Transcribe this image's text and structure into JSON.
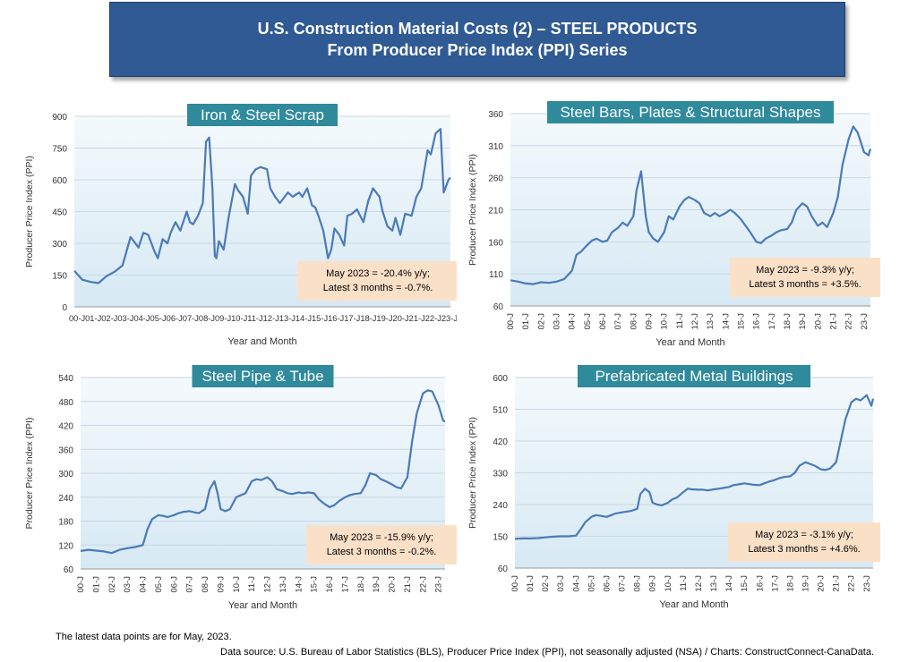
{
  "header": {
    "line1": "U.S. Construction Material Costs (2) – STEEL PRODUCTS",
    "line2": "From Producer Price Index (PPI) Series"
  },
  "footer": {
    "note": "The latest data points are for May, 2023.",
    "source": "Data source: U.S. Bureau of Labor Statistics (BLS), Producer Price Index (PPI), not seasonally adjusted (NSA) / Charts: ConstructConnect-CanaData."
  },
  "colors": {
    "line": "#4a7ab8",
    "title_box": "#2f8a9c",
    "annotation_box": "#fbe0c8",
    "plot_bg_top": "#f4f9fc",
    "plot_bg_bottom": "#d7e9f4",
    "banner": "#2f5a94"
  },
  "chart_data": [
    {
      "type": "line",
      "title": "Iron & Steel Scrap",
      "xlabel": "Year and Month",
      "ylabel": "Producer Price Index (PPI)",
      "ylim": [
        0,
        900
      ],
      "yticks": [
        0,
        150,
        300,
        450,
        600,
        750,
        900
      ],
      "tick_style": "horizontal",
      "categories": [
        "00-J",
        "01-J",
        "02-J",
        "03-J",
        "04-J",
        "05-J",
        "06-J",
        "07-J",
        "08-J",
        "09-J",
        "10-J",
        "11-J",
        "12-J",
        "13-J",
        "14-J",
        "15-J",
        "16-J",
        "17-J",
        "18-J",
        "19-J",
        "20-J",
        "21-J",
        "22-J",
        "23-J"
      ],
      "annotation": [
        "May 2023 = -20.4% y/y;",
        "Latest 3 months = -0.7%."
      ],
      "x": [
        0,
        0.5,
        1,
        1.5,
        2,
        2.5,
        3,
        3.5,
        4,
        4.3,
        4.6,
        5,
        5.2,
        5.5,
        5.8,
        6,
        6.3,
        6.6,
        7,
        7.2,
        7.4,
        7.7,
        8,
        8.2,
        8.4,
        8.6,
        8.75,
        8.85,
        9,
        9.3,
        9.6,
        10,
        10.2,
        10.5,
        10.8,
        11,
        11.3,
        11.6,
        12,
        12.2,
        12.5,
        12.8,
        13,
        13.3,
        13.6,
        14,
        14.2,
        14.5,
        14.8,
        15,
        15.2,
        15.5,
        15.8,
        16,
        16.2,
        16.5,
        16.8,
        17,
        17.3,
        17.6,
        18,
        18.3,
        18.6,
        19,
        19.2,
        19.5,
        19.8,
        20,
        20.3,
        20.6,
        21,
        21.3,
        21.6,
        22,
        22.2,
        22.5,
        22.8,
        23,
        23.3,
        23.42
      ],
      "values": [
        170,
        128,
        118,
        112,
        145,
        165,
        195,
        330,
        280,
        350,
        340,
        260,
        230,
        320,
        300,
        350,
        400,
        360,
        450,
        400,
        390,
        430,
        490,
        780,
        800,
        560,
        240,
        230,
        310,
        270,
        420,
        580,
        550,
        520,
        440,
        620,
        650,
        660,
        650,
        560,
        520,
        490,
        510,
        540,
        520,
        540,
        520,
        560,
        480,
        470,
        430,
        360,
        230,
        270,
        370,
        340,
        290,
        430,
        440,
        460,
        400,
        500,
        560,
        520,
        450,
        380,
        360,
        420,
        340,
        440,
        430,
        520,
        560,
        740,
        720,
        820,
        840,
        540,
        600,
        610
      ]
    },
    {
      "type": "line",
      "title": "Steel Bars, Plates & Structural Shapes",
      "xlabel": "Year and Month",
      "ylabel": "Producer Price Index (PPI)",
      "ylim": [
        60,
        360
      ],
      "yticks": [
        60,
        110,
        160,
        210,
        260,
        310,
        360
      ],
      "tick_style": "rotated",
      "categories": [
        "00-J",
        "01-J",
        "02-J",
        "03-J",
        "04-J",
        "05-J",
        "06-J",
        "07-J",
        "08-J",
        "09-J",
        "10-J",
        "11-J",
        "12-J",
        "13-J",
        "14-J",
        "15-J",
        "16-J",
        "17-J",
        "18-J",
        "19-J",
        "20-J",
        "21-J",
        "22-J",
        "23-J"
      ],
      "annotation": [
        "May 2023 = -9.3% y/y;",
        "Latest 3 months = +3.5%."
      ],
      "x": [
        0,
        0.5,
        1,
        1.5,
        2,
        2.5,
        3,
        3.5,
        4,
        4.3,
        4.6,
        5,
        5.3,
        5.6,
        6,
        6.3,
        6.6,
        7,
        7.3,
        7.6,
        8,
        8.2,
        8.5,
        8.8,
        9,
        9.3,
        9.6,
        10,
        10.3,
        10.6,
        11,
        11.3,
        11.6,
        12,
        12.3,
        12.6,
        13,
        13.3,
        13.6,
        14,
        14.3,
        14.6,
        15,
        15.3,
        15.6,
        16,
        16.3,
        16.6,
        17,
        17.3,
        17.6,
        18,
        18.3,
        18.6,
        19,
        19.3,
        19.6,
        20,
        20.3,
        20.6,
        21,
        21.3,
        21.6,
        22,
        22.3,
        22.6,
        23,
        23.3,
        23.42
      ],
      "values": [
        100,
        98,
        95,
        94,
        97,
        96,
        98,
        102,
        115,
        140,
        145,
        155,
        162,
        165,
        160,
        162,
        175,
        182,
        190,
        185,
        200,
        240,
        270,
        200,
        175,
        165,
        160,
        175,
        200,
        195,
        215,
        225,
        230,
        225,
        220,
        205,
        200,
        205,
        200,
        205,
        210,
        205,
        195,
        185,
        175,
        160,
        158,
        165,
        170,
        175,
        178,
        180,
        190,
        210,
        220,
        215,
        200,
        185,
        190,
        183,
        205,
        230,
        280,
        320,
        340,
        330,
        300,
        295,
        305
      ]
    },
    {
      "type": "line",
      "title": "Steel Pipe & Tube",
      "xlabel": "Year and Month",
      "ylabel": "Producer Price Index (PPI)",
      "ylim": [
        60,
        540
      ],
      "yticks": [
        60,
        120,
        180,
        240,
        300,
        360,
        420,
        480,
        540
      ],
      "tick_style": "rotated",
      "categories": [
        "00-J",
        "01-J",
        "02-J",
        "03-J",
        "04-J",
        "05-J",
        "06-J",
        "07-J",
        "08-J",
        "09-J",
        "10-J",
        "11-J",
        "12-J",
        "13-J",
        "14-J",
        "15-J",
        "16-J",
        "17-J",
        "18-J",
        "19-J",
        "20-J",
        "21-J",
        "22-J",
        "23-J"
      ],
      "annotation": [
        "May 2023 = -15.9% y/y;",
        "Latest 3 months = -0.2%."
      ],
      "x": [
        0,
        0.5,
        1,
        1.5,
        2,
        2.5,
        3,
        3.5,
        4,
        4.3,
        4.6,
        5,
        5.3,
        5.6,
        6,
        6.3,
        6.6,
        7,
        7.3,
        7.6,
        8,
        8.3,
        8.6,
        8.8,
        9,
        9.3,
        9.6,
        10,
        10.3,
        10.6,
        11,
        11.3,
        11.6,
        12,
        12.3,
        12.6,
        13,
        13.3,
        13.6,
        14,
        14.3,
        14.6,
        15,
        15.3,
        15.6,
        16,
        16.3,
        16.6,
        17,
        17.3,
        17.6,
        18,
        18.3,
        18.6,
        19,
        19.3,
        19.6,
        20,
        20.3,
        20.6,
        21,
        21.3,
        21.6,
        22,
        22.3,
        22.6,
        23,
        23.3,
        23.42
      ],
      "values": [
        105,
        108,
        106,
        104,
        100,
        108,
        112,
        115,
        120,
        160,
        185,
        195,
        193,
        190,
        195,
        200,
        203,
        205,
        202,
        200,
        210,
        260,
        280,
        250,
        210,
        205,
        210,
        240,
        245,
        250,
        280,
        285,
        283,
        290,
        280,
        260,
        255,
        250,
        248,
        252,
        250,
        252,
        250,
        235,
        225,
        215,
        220,
        230,
        240,
        245,
        248,
        250,
        270,
        300,
        295,
        285,
        280,
        272,
        265,
        262,
        290,
        380,
        450,
        500,
        508,
        505,
        470,
        432,
        430
      ]
    },
    {
      "type": "line",
      "title": "Prefabricated Metal Buildings",
      "xlabel": "Year and Month",
      "ylabel": "Producer Price Index (PPI)",
      "ylim": [
        60,
        600
      ],
      "yticks": [
        60,
        150,
        240,
        330,
        420,
        510,
        600
      ],
      "tick_style": "rotated",
      "categories": [
        "00-J",
        "01-J",
        "02-J",
        "03-J",
        "04-J",
        "05-J",
        "06-J",
        "07-J",
        "08-J",
        "09-J",
        "10-J",
        "11-J",
        "12-J",
        "13-J",
        "14-J",
        "15-J",
        "16-J",
        "17-J",
        "18-J",
        "19-J",
        "20-J",
        "21-J",
        "22-J",
        "23-J"
      ],
      "annotation": [
        "May 2023 = -3.1% y/y;",
        "Latest 3 months = +4.6%."
      ],
      "x": [
        0,
        0.5,
        1,
        1.5,
        2,
        2.5,
        3,
        3.5,
        4,
        4.3,
        4.6,
        5,
        5.3,
        5.6,
        6,
        6.3,
        6.6,
        7,
        7.3,
        7.6,
        8,
        8.2,
        8.5,
        8.8,
        9,
        9.3,
        9.6,
        10,
        10.3,
        10.6,
        11,
        11.3,
        11.6,
        12,
        12.3,
        12.6,
        13,
        13.3,
        13.6,
        14,
        14.3,
        14.6,
        15,
        15.3,
        15.6,
        16,
        16.3,
        16.6,
        17,
        17.3,
        17.6,
        18,
        18.3,
        18.6,
        19,
        19.3,
        19.6,
        20,
        20.3,
        20.6,
        21,
        21.3,
        21.6,
        22,
        22.3,
        22.6,
        23,
        23.3,
        23.42
      ],
      "values": [
        143,
        144,
        144,
        145,
        147,
        149,
        150,
        150,
        152,
        170,
        190,
        205,
        210,
        208,
        205,
        210,
        215,
        218,
        220,
        222,
        228,
        270,
        285,
        275,
        245,
        240,
        238,
        245,
        255,
        260,
        275,
        285,
        283,
        282,
        282,
        280,
        283,
        285,
        287,
        290,
        295,
        297,
        300,
        298,
        296,
        295,
        300,
        305,
        310,
        315,
        318,
        320,
        330,
        350,
        360,
        355,
        350,
        340,
        338,
        342,
        360,
        420,
        480,
        530,
        540,
        535,
        550,
        520,
        540
      ]
    }
  ]
}
